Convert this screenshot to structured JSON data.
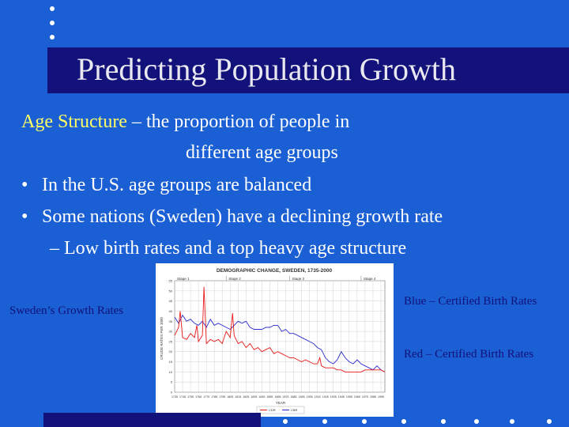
{
  "slide": {
    "title": "Predicting Population Growth",
    "line1_term": "Age Structure",
    "line1_rest": " – the proportion of people in",
    "line2": "different age groups",
    "bullet_char": "•",
    "bullet1": "In the U.S. age groups are balanced",
    "bullet2": "Some nations (Sweden) have a declining growth rate",
    "sub_bullet": "– Low birth rates and a top heavy age structure",
    "chart_caption": "Sweden’s Growth Rates",
    "note_blue": "Blue – Certified Birth Rates",
    "note_red": "Red – Certified Birth Rates"
  },
  "colors": {
    "background": "#1a5fd4",
    "title_bar": "#13117a",
    "accent": "#ffff66",
    "birth_line": "#2b2bd0",
    "death_line": "#e81818"
  },
  "chart_data": {
    "type": "line",
    "title": "DEMOGRAPHIC CHANGE, SWEDEN, 1735-2000",
    "stages": [
      "Stage 1",
      "Stage 2",
      "Stage 3",
      "Stage 4"
    ],
    "xlabel": "YEAR",
    "ylabel": "CRUDE RATES PER 1000",
    "xlim": [
      1735,
      2000
    ],
    "ylim": [
      0,
      55
    ],
    "x_ticks": [
      1735,
      1745,
      1755,
      1765,
      1775,
      1785,
      1795,
      1805,
      1815,
      1825,
      1835,
      1845,
      1855,
      1865,
      1875,
      1885,
      1895,
      1905,
      1915,
      1925,
      1935,
      1945,
      1955,
      1965,
      1975,
      1985,
      1995
    ],
    "y_ticks": [
      0,
      5,
      10,
      15,
      20,
      25,
      30,
      35,
      40,
      45,
      50,
      55
    ],
    "grid": true,
    "legend": "bottom",
    "series": [
      {
        "name": "CBR",
        "color": "#2b2bd0",
        "x": [
          1735,
          1740,
          1745,
          1750,
          1755,
          1760,
          1765,
          1770,
          1775,
          1780,
          1785,
          1790,
          1795,
          1800,
          1805,
          1810,
          1815,
          1820,
          1825,
          1830,
          1835,
          1840,
          1845,
          1850,
          1855,
          1860,
          1865,
          1870,
          1875,
          1880,
          1885,
          1890,
          1895,
          1900,
          1905,
          1910,
          1915,
          1920,
          1925,
          1930,
          1935,
          1940,
          1945,
          1950,
          1955,
          1960,
          1965,
          1970,
          1975,
          1980,
          1985,
          1990,
          1995,
          2000
        ],
        "y": [
          37,
          34,
          38,
          35,
          36,
          34,
          33,
          35,
          32,
          36,
          33,
          34,
          33,
          32,
          31,
          33,
          35,
          34,
          35,
          32,
          31,
          31,
          31,
          32,
          32,
          33,
          33,
          30,
          31,
          29,
          29,
          28,
          27,
          26,
          25,
          24,
          22,
          21,
          17,
          15,
          14,
          16,
          20,
          17,
          15,
          14,
          16,
          14,
          13,
          12,
          11,
          13,
          11,
          10
        ]
      },
      {
        "name": "CDR",
        "color": "#e81818",
        "x": [
          1735,
          1740,
          1742,
          1745,
          1750,
          1755,
          1760,
          1763,
          1765,
          1770,
          1772,
          1775,
          1780,
          1785,
          1790,
          1795,
          1800,
          1805,
          1808,
          1810,
          1815,
          1820,
          1825,
          1830,
          1835,
          1840,
          1845,
          1850,
          1855,
          1860,
          1865,
          1870,
          1875,
          1880,
          1885,
          1890,
          1895,
          1900,
          1905,
          1910,
          1915,
          1918,
          1920,
          1925,
          1930,
          1935,
          1940,
          1945,
          1950,
          1955,
          1960,
          1965,
          1970,
          1975,
          1980,
          1985,
          1990,
          1995,
          2000
        ],
        "y": [
          28,
          32,
          40,
          27,
          26,
          29,
          27,
          33,
          25,
          28,
          52,
          24,
          26,
          25,
          26,
          24,
          30,
          27,
          39,
          28,
          24,
          25,
          22,
          24,
          21,
          22,
          20,
          21,
          22,
          19,
          20,
          19,
          18,
          17,
          17,
          16,
          15,
          16,
          15,
          14,
          14,
          17,
          13,
          12,
          12,
          12,
          11,
          11,
          10,
          10,
          10,
          10,
          10,
          11,
          11,
          11,
          11,
          11,
          10
        ]
      }
    ]
  }
}
